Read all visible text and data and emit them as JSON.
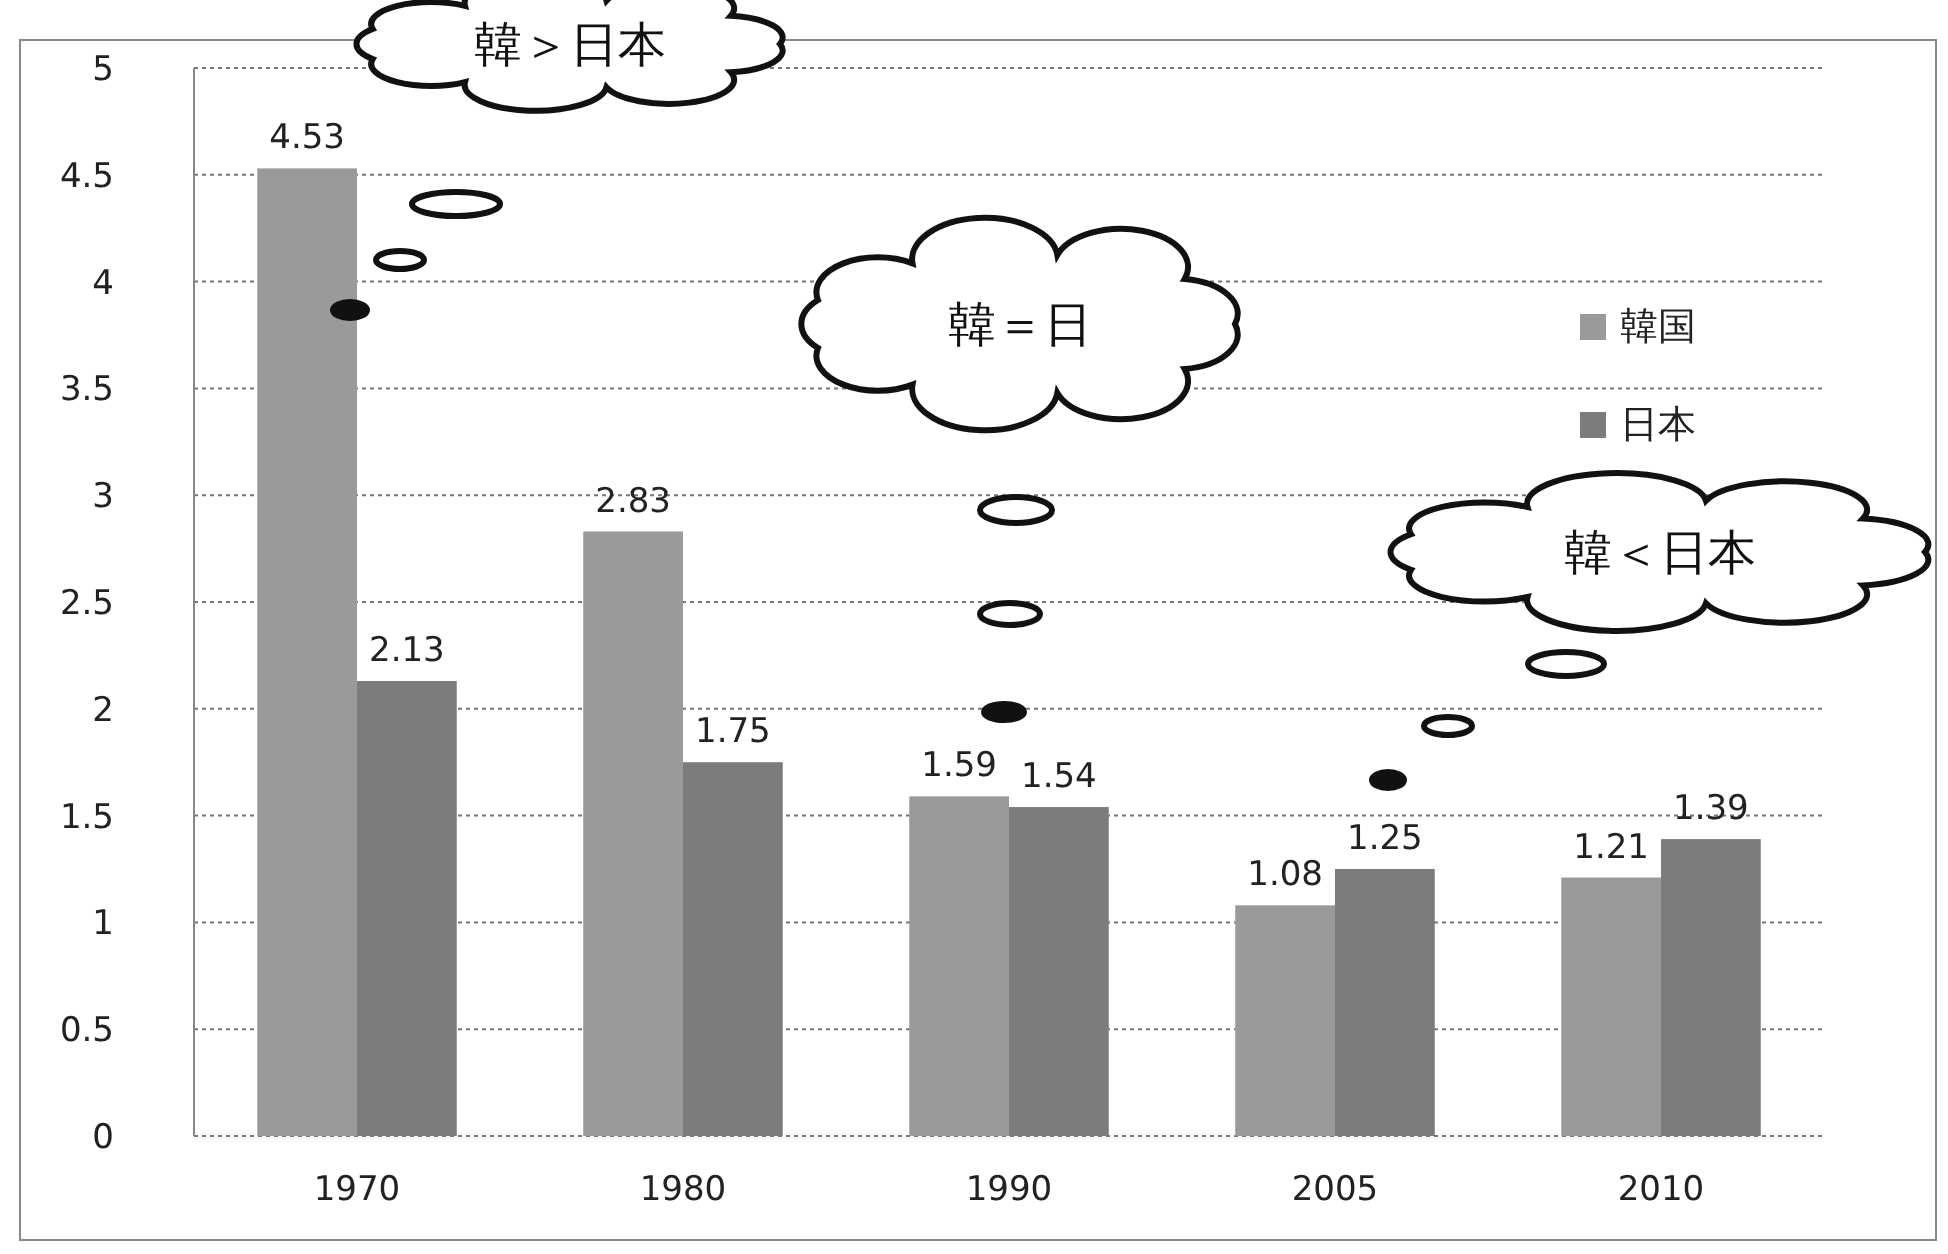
{
  "chart_data": {
    "type": "bar",
    "categories": [
      "1970",
      "1980",
      "1990",
      "2005",
      "2010"
    ],
    "series": [
      {
        "name": "韓国",
        "color": "#9a9a9a",
        "values": [
          4.53,
          2.83,
          1.59,
          1.08,
          1.21
        ]
      },
      {
        "name": "日本",
        "color": "#7c7c7c",
        "values": [
          2.13,
          1.75,
          1.54,
          1.25,
          1.39
        ]
      }
    ],
    "ylim": [
      0,
      5
    ],
    "yticks": [
      0,
      0.5,
      1,
      1.5,
      2,
      2.5,
      3,
      3.5,
      4,
      4.5,
      5
    ],
    "grid": "y",
    "legend": "right",
    "data_labels": true,
    "annotations": [
      "韓＞日本",
      "韓＝日",
      "韓＜日本"
    ]
  }
}
